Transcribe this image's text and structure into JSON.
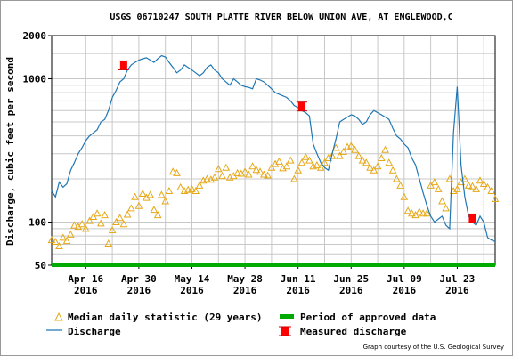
{
  "chart_data": {
    "type": "line",
    "title": "USGS 06710247 SOUTH PLATTE RIVER BELOW UNION AVE, AT ENGLEWOOD,C",
    "ylabel": "Discharge, cubic feet per second",
    "xlabel": "",
    "y_scale": "log",
    "ylim": [
      50,
      2000
    ],
    "xlim": [
      "2016-04-07",
      "2016-08-02"
    ],
    "y_ticks": [
      {
        "value": 50,
        "label": "50"
      },
      {
        "value": 100,
        "label": "100"
      },
      {
        "value": 1000,
        "label": "1000"
      },
      {
        "value": 2000,
        "label": "2000"
      }
    ],
    "x_ticks": [
      {
        "date": "2016-04-16",
        "line1": "Apr 16",
        "line2": "2016"
      },
      {
        "date": "2016-04-30",
        "line1": "Apr 30",
        "line2": "2016"
      },
      {
        "date": "2016-05-14",
        "line1": "May 14",
        "line2": "2016"
      },
      {
        "date": "2016-05-28",
        "line1": "May 28",
        "line2": "2016"
      },
      {
        "date": "2016-06-11",
        "line1": "Jun 11",
        "line2": "2016"
      },
      {
        "date": "2016-06-25",
        "line1": "Jun 25",
        "line2": "2016"
      },
      {
        "date": "2016-07-09",
        "line1": "Jul 09",
        "line2": "2016"
      },
      {
        "date": "2016-07-23",
        "line1": "Jul 23",
        "line2": "2016"
      }
    ],
    "grid": true,
    "series": [
      {
        "name": "Discharge",
        "kind": "line",
        "color": "#1f77b4",
        "points": [
          [
            "2016-04-07",
            165
          ],
          [
            "2016-04-08",
            150
          ],
          [
            "2016-04-09",
            190
          ],
          [
            "2016-04-10",
            175
          ],
          [
            "2016-04-11",
            185
          ],
          [
            "2016-04-12",
            230
          ],
          [
            "2016-04-13",
            260
          ],
          [
            "2016-04-14",
            300
          ],
          [
            "2016-04-15",
            330
          ],
          [
            "2016-04-16",
            370
          ],
          [
            "2016-04-17",
            400
          ],
          [
            "2016-04-18",
            420
          ],
          [
            "2016-04-19",
            440
          ],
          [
            "2016-04-20",
            500
          ],
          [
            "2016-04-21",
            520
          ],
          [
            "2016-04-22",
            600
          ],
          [
            "2016-04-23",
            740
          ],
          [
            "2016-04-24",
            830
          ],
          [
            "2016-04-25",
            950
          ],
          [
            "2016-04-26",
            1000
          ],
          [
            "2016-04-27",
            1150
          ],
          [
            "2016-04-28",
            1250
          ],
          [
            "2016-04-29",
            1300
          ],
          [
            "2016-04-30",
            1350
          ],
          [
            "2016-05-01",
            1380
          ],
          [
            "2016-05-02",
            1400
          ],
          [
            "2016-05-03",
            1350
          ],
          [
            "2016-05-04",
            1300
          ],
          [
            "2016-05-05",
            1380
          ],
          [
            "2016-05-06",
            1450
          ],
          [
            "2016-05-07",
            1420
          ],
          [
            "2016-05-08",
            1300
          ],
          [
            "2016-05-09",
            1200
          ],
          [
            "2016-05-10",
            1100
          ],
          [
            "2016-05-11",
            1150
          ],
          [
            "2016-05-12",
            1250
          ],
          [
            "2016-05-13",
            1200
          ],
          [
            "2016-05-14",
            1150
          ],
          [
            "2016-05-15",
            1100
          ],
          [
            "2016-05-16",
            1050
          ],
          [
            "2016-05-17",
            1100
          ],
          [
            "2016-05-18",
            1200
          ],
          [
            "2016-05-19",
            1250
          ],
          [
            "2016-05-20",
            1150
          ],
          [
            "2016-05-21",
            1100
          ],
          [
            "2016-05-22",
            1000
          ],
          [
            "2016-05-23",
            950
          ],
          [
            "2016-05-24",
            900
          ],
          [
            "2016-05-25",
            1000
          ],
          [
            "2016-05-26",
            950
          ],
          [
            "2016-05-27",
            900
          ],
          [
            "2016-05-28",
            880
          ],
          [
            "2016-05-29",
            870
          ],
          [
            "2016-05-30",
            850
          ],
          [
            "2016-05-31",
            1000
          ],
          [
            "2016-06-01",
            980
          ],
          [
            "2016-06-02",
            950
          ],
          [
            "2016-06-03",
            900
          ],
          [
            "2016-06-04",
            850
          ],
          [
            "2016-06-05",
            800
          ],
          [
            "2016-06-06",
            780
          ],
          [
            "2016-06-07",
            760
          ],
          [
            "2016-06-08",
            740
          ],
          [
            "2016-06-09",
            700
          ],
          [
            "2016-06-10",
            650
          ],
          [
            "2016-06-11",
            630
          ],
          [
            "2016-06-12",
            600
          ],
          [
            "2016-06-13",
            580
          ],
          [
            "2016-06-14",
            550
          ],
          [
            "2016-06-15",
            350
          ],
          [
            "2016-06-16",
            300
          ],
          [
            "2016-06-17",
            260
          ],
          [
            "2016-06-18",
            240
          ],
          [
            "2016-06-19",
            230
          ],
          [
            "2016-06-20",
            300
          ],
          [
            "2016-06-21",
            380
          ],
          [
            "2016-06-22",
            500
          ],
          [
            "2016-06-23",
            520
          ],
          [
            "2016-06-24",
            540
          ],
          [
            "2016-06-25",
            560
          ],
          [
            "2016-06-26",
            550
          ],
          [
            "2016-06-27",
            520
          ],
          [
            "2016-06-28",
            480
          ],
          [
            "2016-06-29",
            500
          ],
          [
            "2016-06-30",
            560
          ],
          [
            "2016-07-01",
            600
          ],
          [
            "2016-07-02",
            580
          ],
          [
            "2016-07-03",
            560
          ],
          [
            "2016-07-04",
            540
          ],
          [
            "2016-07-05",
            520
          ],
          [
            "2016-07-06",
            450
          ],
          [
            "2016-07-07",
            400
          ],
          [
            "2016-07-08",
            380
          ],
          [
            "2016-07-09",
            350
          ],
          [
            "2016-07-10",
            330
          ],
          [
            "2016-07-11",
            280
          ],
          [
            "2016-07-12",
            250
          ],
          [
            "2016-07-13",
            200
          ],
          [
            "2016-07-14",
            160
          ],
          [
            "2016-07-15",
            130
          ],
          [
            "2016-07-16",
            110
          ],
          [
            "2016-07-17",
            100
          ],
          [
            "2016-07-18",
            105
          ],
          [
            "2016-07-19",
            110
          ],
          [
            "2016-07-20",
            95
          ],
          [
            "2016-07-21",
            90
          ],
          [
            "2016-07-22",
            420
          ],
          [
            "2016-07-23",
            880
          ],
          [
            "2016-07-24",
            250
          ],
          [
            "2016-07-25",
            150
          ],
          [
            "2016-07-26",
            110
          ],
          [
            "2016-07-27",
            100
          ],
          [
            "2016-07-28",
            95
          ],
          [
            "2016-07-29",
            110
          ],
          [
            "2016-07-30",
            100
          ],
          [
            "2016-07-31",
            78
          ],
          [
            "2016-08-01",
            75
          ],
          [
            "2016-08-02",
            73
          ]
        ]
      },
      {
        "name": "Median daily statistic (29 years)",
        "kind": "triangles",
        "color": "#e6a817",
        "points": [
          [
            "2016-04-07",
            75
          ],
          [
            "2016-04-08",
            73
          ],
          [
            "2016-04-09",
            68
          ],
          [
            "2016-04-10",
            78
          ],
          [
            "2016-04-11",
            74
          ],
          [
            "2016-04-12",
            82
          ],
          [
            "2016-04-13",
            95
          ],
          [
            "2016-04-14",
            93
          ],
          [
            "2016-04-15",
            97
          ],
          [
            "2016-04-16",
            90
          ],
          [
            "2016-04-17",
            102
          ],
          [
            "2016-04-18",
            109
          ],
          [
            "2016-04-19",
            115
          ],
          [
            "2016-04-20",
            98
          ],
          [
            "2016-04-21",
            112
          ],
          [
            "2016-04-22",
            71
          ],
          [
            "2016-04-23",
            88
          ],
          [
            "2016-04-24",
            100
          ],
          [
            "2016-04-25",
            107
          ],
          [
            "2016-04-26",
            97
          ],
          [
            "2016-04-27",
            113
          ],
          [
            "2016-04-28",
            125
          ],
          [
            "2016-04-29",
            150
          ],
          [
            "2016-04-30",
            130
          ],
          [
            "2016-05-01",
            158
          ],
          [
            "2016-05-02",
            148
          ],
          [
            "2016-05-03",
            155
          ],
          [
            "2016-05-04",
            122
          ],
          [
            "2016-05-05",
            112
          ],
          [
            "2016-05-06",
            155
          ],
          [
            "2016-05-07",
            140
          ],
          [
            "2016-05-08",
            165
          ],
          [
            "2016-05-09",
            225
          ],
          [
            "2016-05-10",
            220
          ],
          [
            "2016-05-11",
            175
          ],
          [
            "2016-05-12",
            165
          ],
          [
            "2016-05-13",
            168
          ],
          [
            "2016-05-14",
            170
          ],
          [
            "2016-05-15",
            165
          ],
          [
            "2016-05-16",
            180
          ],
          [
            "2016-05-17",
            195
          ],
          [
            "2016-05-18",
            200
          ],
          [
            "2016-05-19",
            198
          ],
          [
            "2016-05-20",
            205
          ],
          [
            "2016-05-21",
            235
          ],
          [
            "2016-05-22",
            210
          ],
          [
            "2016-05-23",
            240
          ],
          [
            "2016-05-24",
            205
          ],
          [
            "2016-05-25",
            210
          ],
          [
            "2016-05-26",
            220
          ],
          [
            "2016-05-27",
            218
          ],
          [
            "2016-05-28",
            225
          ],
          [
            "2016-05-29",
            215
          ],
          [
            "2016-05-30",
            245
          ],
          [
            "2016-05-31",
            232
          ],
          [
            "2016-06-01",
            225
          ],
          [
            "2016-06-02",
            215
          ],
          [
            "2016-06-03",
            212
          ],
          [
            "2016-06-04",
            240
          ],
          [
            "2016-06-05",
            255
          ],
          [
            "2016-06-06",
            265
          ],
          [
            "2016-06-07",
            238
          ],
          [
            "2016-06-08",
            245
          ],
          [
            "2016-06-09",
            270
          ],
          [
            "2016-06-10",
            200
          ],
          [
            "2016-06-11",
            230
          ],
          [
            "2016-06-12",
            260
          ],
          [
            "2016-06-13",
            285
          ],
          [
            "2016-06-14",
            270
          ],
          [
            "2016-06-15",
            245
          ],
          [
            "2016-06-16",
            250
          ],
          [
            "2016-06-17",
            240
          ],
          [
            "2016-06-18",
            260
          ],
          [
            "2016-06-19",
            280
          ],
          [
            "2016-06-20",
            290
          ],
          [
            "2016-06-21",
            330
          ],
          [
            "2016-06-22",
            290
          ],
          [
            "2016-06-23",
            310
          ],
          [
            "2016-06-24",
            335
          ],
          [
            "2016-06-25",
            340
          ],
          [
            "2016-06-26",
            320
          ],
          [
            "2016-06-27",
            290
          ],
          [
            "2016-06-28",
            270
          ],
          [
            "2016-06-29",
            260
          ],
          [
            "2016-06-30",
            240
          ],
          [
            "2016-07-01",
            230
          ],
          [
            "2016-07-02",
            245
          ],
          [
            "2016-07-03",
            280
          ],
          [
            "2016-07-04",
            320
          ],
          [
            "2016-07-05",
            260
          ],
          [
            "2016-07-06",
            230
          ],
          [
            "2016-07-07",
            200
          ],
          [
            "2016-07-08",
            180
          ],
          [
            "2016-07-09",
            150
          ],
          [
            "2016-07-10",
            120
          ],
          [
            "2016-07-11",
            115
          ],
          [
            "2016-07-12",
            112
          ],
          [
            "2016-07-13",
            118
          ],
          [
            "2016-07-14",
            115
          ],
          [
            "2016-07-15",
            115
          ],
          [
            "2016-07-16",
            180
          ],
          [
            "2016-07-17",
            190
          ],
          [
            "2016-07-18",
            170
          ],
          [
            "2016-07-19",
            140
          ],
          [
            "2016-07-20",
            125
          ],
          [
            "2016-07-21",
            200
          ],
          [
            "2016-07-22",
            165
          ],
          [
            "2016-07-23",
            170
          ],
          [
            "2016-07-24",
            190
          ],
          [
            "2016-07-25",
            200
          ],
          [
            "2016-07-26",
            180
          ],
          [
            "2016-07-27",
            178
          ],
          [
            "2016-07-28",
            170
          ],
          [
            "2016-07-29",
            195
          ],
          [
            "2016-07-30",
            185
          ],
          [
            "2016-07-31",
            175
          ],
          [
            "2016-08-01",
            165
          ],
          [
            "2016-08-02",
            145
          ]
        ]
      },
      {
        "name": "Measured discharge",
        "kind": "markers",
        "color": "#ff0000",
        "points": [
          [
            "2016-04-26",
            1240
          ],
          [
            "2016-06-12",
            640
          ],
          [
            "2016-07-27",
            106
          ]
        ]
      },
      {
        "name": "Period of approved data",
        "kind": "band",
        "color": "#00aa00",
        "range": [
          "2016-04-07",
          "2016-08-02"
        ]
      }
    ],
    "legend": {
      "placement": "bottom",
      "entries": [
        {
          "label": "Median daily statistic (29 years)",
          "kind": "triangles"
        },
        {
          "label": "Period of approved data",
          "kind": "band"
        },
        {
          "label": "Discharge",
          "kind": "line"
        },
        {
          "label": "Measured discharge",
          "kind": "markers"
        }
      ]
    }
  },
  "credit": "Graph courtesy of the U.S. Geological Survey"
}
